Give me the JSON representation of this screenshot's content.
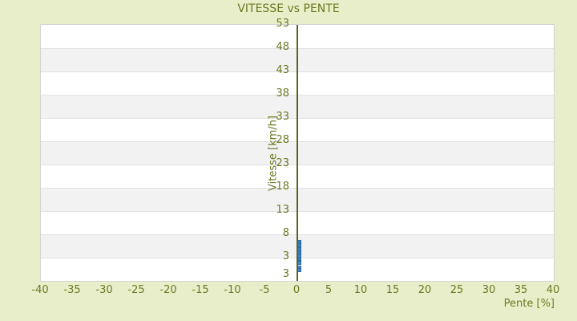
{
  "colors": {
    "background": "#e9eeca",
    "text_olive": "#6d7822",
    "band_light": "#ffffff",
    "band_dark": "#f2f2f3",
    "gridline": "#e2e2e2",
    "plot_border": "#d4d4d4",
    "zero_line": "#59651b",
    "marker_fill": "#4286c5",
    "marker_border": "#2a679f"
  },
  "chart_data": {
    "type": "scatter",
    "title": "VITESSE vs PENTE",
    "xlabel": "Pente [%]",
    "ylabel": "Vitesse [km/h]",
    "xlim": [
      -40,
      40
    ],
    "ylim": [
      -2,
      53
    ],
    "x_ticks": [
      -40,
      -35,
      -30,
      -25,
      -20,
      -15,
      -10,
      -5,
      0,
      5,
      10,
      15,
      20,
      25,
      30,
      35,
      40
    ],
    "y_ticks": [
      53,
      48,
      43,
      38,
      33,
      28,
      23,
      18,
      13,
      8,
      3
    ],
    "y_bottom_label": "3",
    "grid": "horizontal-bands",
    "legend": "none",
    "series": [
      {
        "name": "vitesse-points",
        "marker": "square",
        "color": "#4286c5",
        "x": [
          0.3,
          0.3,
          0.3,
          0.3,
          0.3,
          0.3,
          0.3,
          0.3,
          0.3,
          0.3,
          0.3,
          0.3,
          0.3,
          0.3,
          0.3
        ],
        "y": [
          6.4,
          6.0,
          5.6,
          5.2,
          4.8,
          4.4,
          4.0,
          3.6,
          3.2,
          2.8,
          2.4,
          2.0,
          1.8,
          0.9,
          0.4
        ]
      }
    ]
  }
}
